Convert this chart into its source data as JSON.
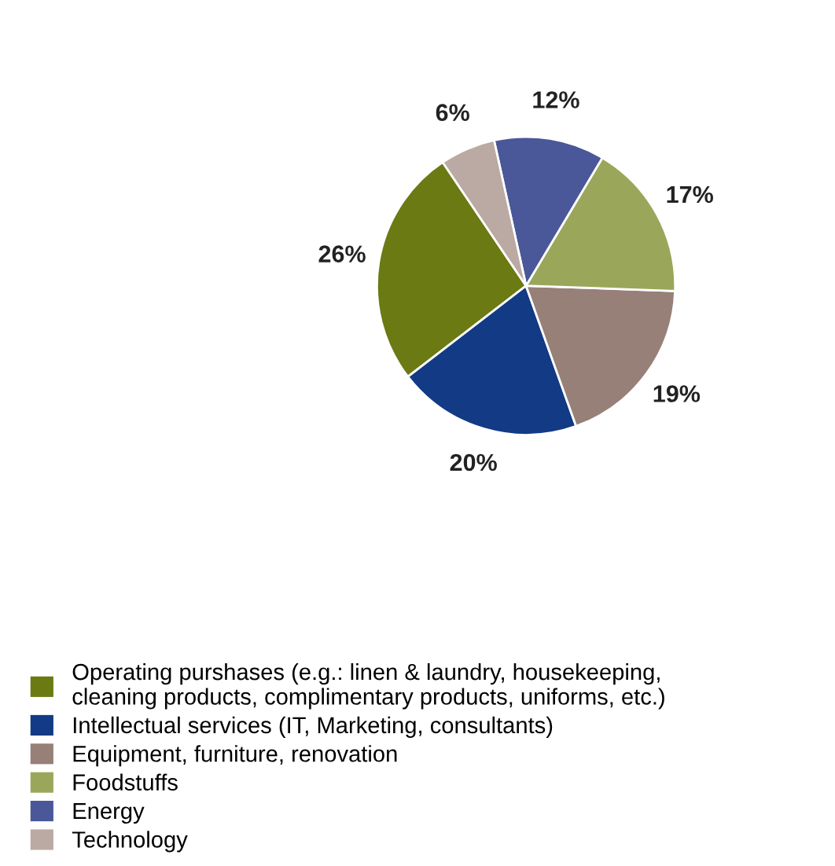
{
  "chart_data": {
    "type": "pie",
    "categories": [
      "Operating purshases (e.g.: linen & laundry, housekeeping,\ncleaning products, complimentary products, uniforms, etc.)",
      "Intellectual services (IT, Marketing, consultants)",
      "Equipment, furniture, renovation",
      "Foodstuffs",
      "Energy",
      "Technology"
    ],
    "values": [
      26,
      20,
      19,
      17,
      12,
      6
    ],
    "colors": [
      "#6b7a12",
      "#123a85",
      "#968078",
      "#9aa75a",
      "#4a5899",
      "#baaaa3"
    ],
    "value_labels": [
      "26%",
      "20%",
      "19%",
      "17%",
      "12%",
      "6%"
    ],
    "legend": "bottom"
  }
}
